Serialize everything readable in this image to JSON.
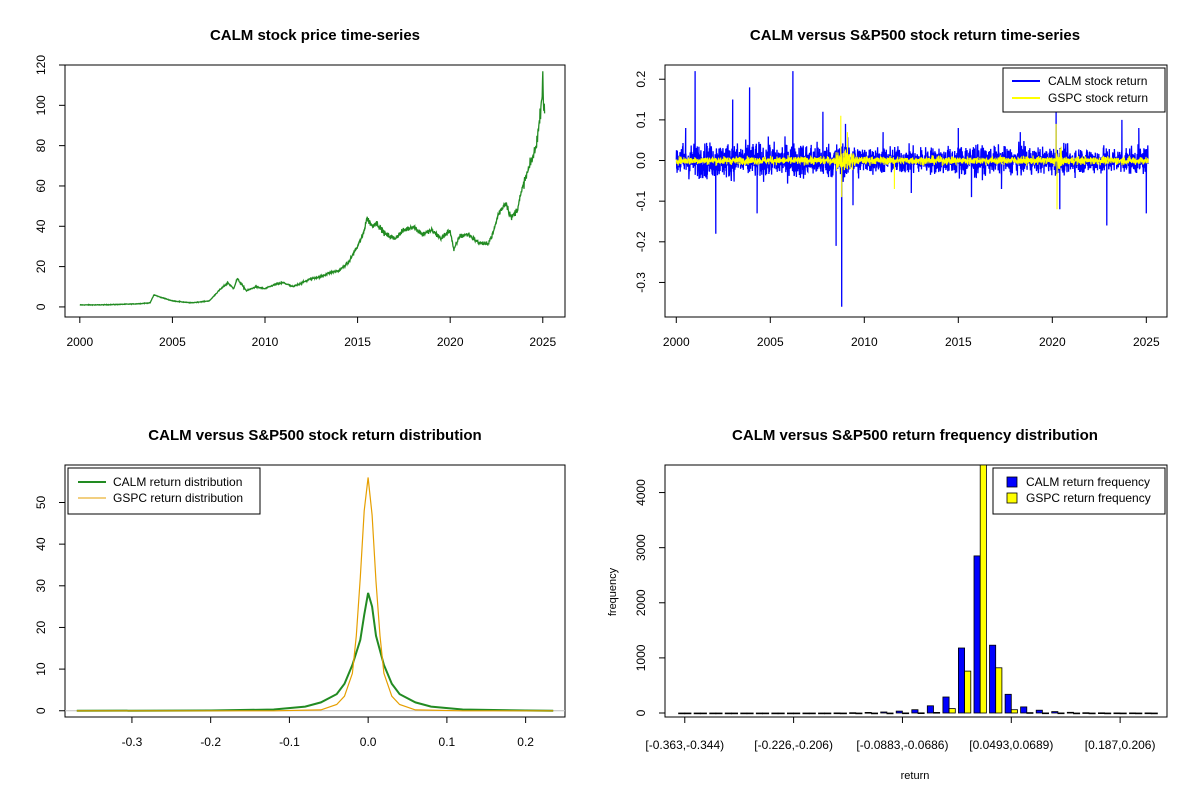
{
  "chart_data": [
    {
      "type": "line",
      "title": "CALM stock price time-series",
      "xlabel": "",
      "ylabel": "",
      "xlim": [
        1999.2,
        2026.2
      ],
      "ylim": [
        -5,
        120
      ],
      "xticks": [
        2000,
        2005,
        2010,
        2015,
        2020,
        2025
      ],
      "xtick_labels": [
        "2000",
        "2005",
        "2010",
        "2015",
        "2020",
        "2025"
      ],
      "yticks": [
        0,
        20,
        40,
        60,
        80,
        100,
        120
      ],
      "ytick_labels": [
        "0",
        "20",
        "40",
        "60",
        "80",
        "100",
        "120"
      ],
      "grid": false,
      "color": "#228B22",
      "series": [
        {
          "x": [
            2000.0,
            2001.0,
            2002.0,
            2003.0,
            2003.8,
            2004.0,
            2004.3,
            2005.0,
            2006.0,
            2007.0,
            2007.5,
            2008.0,
            2008.3,
            2008.5,
            2009.0,
            2009.5,
            2010.0,
            2010.5,
            2011.0,
            2011.5,
            2012.0,
            2012.5,
            2013.0,
            2013.5,
            2014.0,
            2014.5,
            2015.0,
            2015.3,
            2015.5,
            2015.8,
            2016.0,
            2016.5,
            2017.0,
            2017.5,
            2018.0,
            2018.5,
            2019.0,
            2019.5,
            2020.0,
            2020.2,
            2020.5,
            2021.0,
            2021.5,
            2022.0,
            2022.3,
            2022.6,
            2023.0,
            2023.3,
            2023.6,
            2024.0,
            2024.3,
            2024.6,
            2024.8,
            2024.95,
            2025.0,
            2025.05,
            2025.1
          ],
          "y": [
            1,
            1,
            1.2,
            1.5,
            2,
            6,
            5,
            3,
            2,
            3,
            8,
            12,
            9,
            14,
            8,
            10,
            9,
            11,
            12,
            10,
            12,
            14,
            15,
            17,
            18,
            22,
            30,
            36,
            44,
            40,
            42,
            36,
            34,
            38,
            40,
            36,
            38,
            34,
            38,
            28,
            35,
            36,
            32,
            31,
            36,
            46,
            52,
            44,
            48,
            62,
            70,
            78,
            90,
            104,
            116,
            98,
            96
          ]
        }
      ]
    },
    {
      "type": "line",
      "title": "CALM versus S&P500 stock return time-series",
      "xlabel": "",
      "ylabel": "",
      "xlim": [
        1999.4,
        2026.1
      ],
      "ylim": [
        -0.385,
        0.235
      ],
      "xticks": [
        2000,
        2005,
        2010,
        2015,
        2020,
        2025
      ],
      "xtick_labels": [
        "2000",
        "2005",
        "2010",
        "2015",
        "2020",
        "2025"
      ],
      "yticks": [
        -0.3,
        -0.2,
        -0.1,
        0.0,
        0.1,
        0.2
      ],
      "ytick_labels": [
        "-0.3",
        "-0.2",
        "-0.1",
        "0.0",
        "0.1",
        "0.2"
      ],
      "grid": false,
      "legend": "top-right",
      "series": [
        {
          "name": "CALM stock return",
          "color": "#0000FF",
          "typical_band": 0.04,
          "extremes": [
            [
              2000.5,
              0.08
            ],
            [
              2001.0,
              0.22
            ],
            [
              2002.1,
              -0.18
            ],
            [
              2003.0,
              0.15
            ],
            [
              2003.9,
              0.18
            ],
            [
              2004.3,
              -0.13
            ],
            [
              2006.2,
              0.22
            ],
            [
              2007.8,
              0.12
            ],
            [
              2008.5,
              -0.21
            ],
            [
              2008.8,
              -0.36
            ],
            [
              2009.0,
              0.09
            ],
            [
              2009.4,
              -0.11
            ],
            [
              2011.0,
              0.07
            ],
            [
              2012.5,
              -0.08
            ],
            [
              2015.0,
              0.08
            ],
            [
              2015.7,
              -0.09
            ],
            [
              2017.3,
              -0.07
            ],
            [
              2018.3,
              0.07
            ],
            [
              2020.2,
              0.12
            ],
            [
              2020.4,
              -0.12
            ],
            [
              2022.9,
              -0.16
            ],
            [
              2023.7,
              0.1
            ],
            [
              2024.6,
              0.08
            ],
            [
              2025.0,
              -0.13
            ]
          ]
        },
        {
          "name": "GSPC stock return",
          "color": "#FFFF00",
          "typical_band": 0.012,
          "extremes": [
            [
              2008.75,
              0.11
            ],
            [
              2008.8,
              -0.09
            ],
            [
              2009.1,
              0.07
            ],
            [
              2011.6,
              -0.07
            ],
            [
              2020.2,
              0.09
            ],
            [
              2020.25,
              -0.12
            ]
          ]
        }
      ]
    },
    {
      "type": "line",
      "title": "CALM versus S&P500 stock return distribution",
      "xlabel": "",
      "ylabel": "",
      "xlim": [
        -0.385,
        0.25
      ],
      "ylim": [
        -1.5,
        59
      ],
      "xticks": [
        -0.3,
        -0.2,
        -0.1,
        0.0,
        0.1,
        0.2
      ],
      "xtick_labels": [
        "-0.3",
        "-0.2",
        "-0.1",
        "0.0",
        "0.1",
        "0.2"
      ],
      "yticks": [
        0,
        10,
        20,
        30,
        40,
        50
      ],
      "ytick_labels": [
        "0",
        "10",
        "20",
        "30",
        "40",
        "50"
      ],
      "grid": false,
      "legend": "top-left",
      "series": [
        {
          "name": "CALM return distribution",
          "color": "#228B22",
          "x": [
            -0.37,
            -0.2,
            -0.12,
            -0.08,
            -0.06,
            -0.04,
            -0.03,
            -0.02,
            -0.01,
            -0.005,
            0.0,
            0.005,
            0.01,
            0.02,
            0.03,
            0.04,
            0.06,
            0.08,
            0.12,
            0.2,
            0.235
          ],
          "y": [
            0,
            0.05,
            0.3,
            1.0,
            2.0,
            4.0,
            6.5,
            11.0,
            17.0,
            23.0,
            28.3,
            25.0,
            18.0,
            11.0,
            6.5,
            4.0,
            2.0,
            1.0,
            0.3,
            0.05,
            0
          ]
        },
        {
          "name": "GSPC return distribution",
          "color": "#E69F00",
          "x": [
            -0.37,
            -0.12,
            -0.06,
            -0.04,
            -0.03,
            -0.02,
            -0.015,
            -0.01,
            -0.005,
            0.0,
            0.005,
            0.01,
            0.015,
            0.02,
            0.03,
            0.04,
            0.06,
            0.12,
            0.235
          ],
          "y": [
            0,
            0,
            0.2,
            1.5,
            3.5,
            9.0,
            18.0,
            32.0,
            48.0,
            56.0,
            47.0,
            31.0,
            18.0,
            9.0,
            3.5,
            1.5,
            0.2,
            0,
            0
          ]
        }
      ]
    },
    {
      "type": "bar",
      "title": "CALM versus S&P500 return frequency distribution",
      "xlabel": "return",
      "ylabel": "frequency",
      "ylim": [
        0,
        4500
      ],
      "yticks": [
        0,
        1000,
        2000,
        3000,
        4000
      ],
      "ytick_labels": [
        "0",
        "1000",
        "2000",
        "3000",
        "4000"
      ],
      "grid": false,
      "legend": "top-right",
      "tick_labels": [
        "[-0.363,-0.344)",
        "[-0.226,-0.206)",
        "[-0.0883,-0.0686)",
        "[0.0493,0.0689)",
        "[0.187,0.206)"
      ],
      "tick_bins": [
        0,
        7,
        14,
        21,
        28
      ],
      "bin_count": 31,
      "series": [
        {
          "name": "CALM return frequency",
          "color": "#0000FF",
          "values": [
            0,
            0,
            0,
            0,
            0,
            0,
            0,
            0,
            0,
            0,
            2,
            5,
            10,
            18,
            35,
            60,
            130,
            290,
            1180,
            2850,
            1230,
            340,
            110,
            50,
            25,
            12,
            6,
            3,
            2,
            1,
            2
          ]
        },
        {
          "name": "GSPC return frequency",
          "color": "#FFFF00",
          "values": [
            0,
            0,
            0,
            0,
            0,
            0,
            0,
            0,
            0,
            0,
            0,
            0,
            0,
            0,
            1,
            3,
            10,
            80,
            760,
            4600,
            820,
            60,
            8,
            2,
            1,
            0,
            0,
            0,
            0,
            0,
            0
          ]
        }
      ]
    }
  ]
}
